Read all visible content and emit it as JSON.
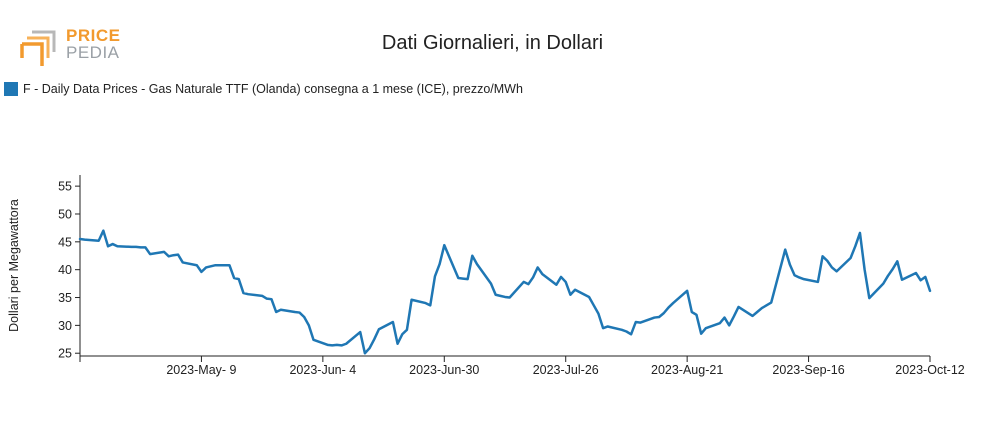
{
  "logo": {
    "top_word": "PRICE",
    "bottom_word": "PEDIA"
  },
  "colors": {
    "series": "#1f77b4",
    "logo_accent": "#f29a2e",
    "logo_gray": "#9aa0a6"
  },
  "chart_data": {
    "type": "line",
    "title": "Dati Giornalieri, in Dollari",
    "ylabel": "Dollari per Megawattora",
    "xlabel": "",
    "ylim": [
      24.5,
      57
    ],
    "yticks": [
      25,
      30,
      35,
      40,
      45,
      50,
      55
    ],
    "xlim": [
      "2023-04-13",
      "2023-10-12"
    ],
    "xticks": [
      {
        "date": "2023-05-09",
        "label": "2023-May- 9"
      },
      {
        "date": "2023-06-04",
        "label": "2023-Jun- 4"
      },
      {
        "date": "2023-06-30",
        "label": "2023-Jun-30"
      },
      {
        "date": "2023-07-26",
        "label": "2023-Jul-26"
      },
      {
        "date": "2023-08-21",
        "label": "2023-Aug-21"
      },
      {
        "date": "2023-09-16",
        "label": "2023-Sep-16"
      },
      {
        "date": "2023-10-12",
        "label": "2023-Oct-12"
      }
    ],
    "grid": false,
    "legend_position": "top-left",
    "series": [
      {
        "name": "F - Daily Data Prices - Gas Naturale TTF (Olanda) consegna a 1 mese (ICE), prezzo/MWh",
        "points": [
          [
            "2023-04-13",
            45.5
          ],
          [
            "2023-04-14",
            45.4
          ],
          [
            "2023-04-17",
            45.2
          ],
          [
            "2023-04-18",
            47.0
          ],
          [
            "2023-04-19",
            44.2
          ],
          [
            "2023-04-20",
            44.6
          ],
          [
            "2023-04-21",
            44.2
          ],
          [
            "2023-04-24",
            44.1
          ],
          [
            "2023-04-25",
            44.1
          ],
          [
            "2023-04-26",
            44.0
          ],
          [
            "2023-04-27",
            44.0
          ],
          [
            "2023-04-28",
            42.8
          ],
          [
            "2023-05-01",
            43.2
          ],
          [
            "2023-05-02",
            42.4
          ],
          [
            "2023-05-03",
            42.6
          ],
          [
            "2023-05-04",
            42.7
          ],
          [
            "2023-05-05",
            41.3
          ],
          [
            "2023-05-08",
            40.8
          ],
          [
            "2023-05-09",
            39.6
          ],
          [
            "2023-05-10",
            40.4
          ],
          [
            "2023-05-11",
            40.6
          ],
          [
            "2023-05-12",
            40.8
          ],
          [
            "2023-05-15",
            40.8
          ],
          [
            "2023-05-16",
            38.5
          ],
          [
            "2023-05-17",
            38.3
          ],
          [
            "2023-05-18",
            35.8
          ],
          [
            "2023-05-19",
            35.6
          ],
          [
            "2023-05-22",
            35.3
          ],
          [
            "2023-05-23",
            34.8
          ],
          [
            "2023-05-24",
            34.7
          ],
          [
            "2023-05-25",
            32.4
          ],
          [
            "2023-05-26",
            32.8
          ],
          [
            "2023-05-29",
            32.4
          ],
          [
            "2023-05-30",
            32.3
          ],
          [
            "2023-05-31",
            31.5
          ],
          [
            "2023-06-01",
            30.0
          ],
          [
            "2023-06-02",
            27.4
          ],
          [
            "2023-06-05",
            26.5
          ],
          [
            "2023-06-06",
            26.4
          ],
          [
            "2023-06-07",
            26.5
          ],
          [
            "2023-06-08",
            26.4
          ],
          [
            "2023-06-09",
            26.7
          ],
          [
            "2023-06-12",
            28.8
          ],
          [
            "2023-06-13",
            25.0
          ],
          [
            "2023-06-14",
            25.9
          ],
          [
            "2023-06-15",
            27.5
          ],
          [
            "2023-06-16",
            29.3
          ],
          [
            "2023-06-19",
            30.6
          ],
          [
            "2023-06-20",
            26.7
          ],
          [
            "2023-06-21",
            28.4
          ],
          [
            "2023-06-22",
            29.2
          ],
          [
            "2023-06-23",
            34.6
          ],
          [
            "2023-06-26",
            34.0
          ],
          [
            "2023-06-27",
            33.6
          ],
          [
            "2023-06-28",
            38.8
          ],
          [
            "2023-06-29",
            41.0
          ],
          [
            "2023-06-30",
            44.4
          ],
          [
            "2023-07-03",
            38.5
          ],
          [
            "2023-07-04",
            38.4
          ],
          [
            "2023-07-05",
            38.3
          ],
          [
            "2023-07-06",
            42.5
          ],
          [
            "2023-07-07",
            41.0
          ],
          [
            "2023-07-10",
            37.5
          ],
          [
            "2023-07-11",
            35.5
          ],
          [
            "2023-07-12",
            35.3
          ],
          [
            "2023-07-13",
            35.1
          ],
          [
            "2023-07-14",
            35.0
          ],
          [
            "2023-07-17",
            37.8
          ],
          [
            "2023-07-18",
            37.4
          ],
          [
            "2023-07-19",
            38.6
          ],
          [
            "2023-07-20",
            40.4
          ],
          [
            "2023-07-21",
            39.2
          ],
          [
            "2023-07-24",
            37.3
          ],
          [
            "2023-07-25",
            38.7
          ],
          [
            "2023-07-26",
            37.8
          ],
          [
            "2023-07-27",
            35.5
          ],
          [
            "2023-07-28",
            36.4
          ],
          [
            "2023-07-31",
            35.1
          ],
          [
            "2023-08-01",
            33.6
          ],
          [
            "2023-08-02",
            32.1
          ],
          [
            "2023-08-03",
            29.5
          ],
          [
            "2023-08-04",
            29.8
          ],
          [
            "2023-08-07",
            29.2
          ],
          [
            "2023-08-08",
            28.9
          ],
          [
            "2023-08-09",
            28.4
          ],
          [
            "2023-08-10",
            30.6
          ],
          [
            "2023-08-11",
            30.5
          ],
          [
            "2023-08-14",
            31.4
          ],
          [
            "2023-08-15",
            31.5
          ],
          [
            "2023-08-16",
            32.2
          ],
          [
            "2023-08-17",
            33.2
          ],
          [
            "2023-08-18",
            34.0
          ],
          [
            "2023-08-21",
            36.2
          ],
          [
            "2023-08-22",
            32.4
          ],
          [
            "2023-08-23",
            31.9
          ],
          [
            "2023-08-24",
            28.5
          ],
          [
            "2023-08-25",
            29.5
          ],
          [
            "2023-08-28",
            30.4
          ],
          [
            "2023-08-29",
            31.4
          ],
          [
            "2023-08-30",
            30.0
          ],
          [
            "2023-08-31",
            31.6
          ],
          [
            "2023-09-01",
            33.3
          ],
          [
            "2023-09-04",
            31.7
          ],
          [
            "2023-09-05",
            32.4
          ],
          [
            "2023-09-06",
            33.1
          ],
          [
            "2023-09-07",
            33.6
          ],
          [
            "2023-09-08",
            34.1
          ],
          [
            "2023-09-11",
            43.6
          ],
          [
            "2023-09-12",
            40.9
          ],
          [
            "2023-09-13",
            39.0
          ],
          [
            "2023-09-14",
            38.6
          ],
          [
            "2023-09-15",
            38.3
          ],
          [
            "2023-09-18",
            37.8
          ],
          [
            "2023-09-19",
            42.4
          ],
          [
            "2023-09-20",
            41.6
          ],
          [
            "2023-09-21",
            40.4
          ],
          [
            "2023-09-22",
            39.7
          ],
          [
            "2023-09-25",
            42.1
          ],
          [
            "2023-09-26",
            44.2
          ],
          [
            "2023-09-27",
            46.6
          ],
          [
            "2023-09-28",
            40.0
          ],
          [
            "2023-09-29",
            34.9
          ],
          [
            "2023-10-02",
            37.5
          ],
          [
            "2023-10-03",
            38.9
          ],
          [
            "2023-10-04",
            40.1
          ],
          [
            "2023-10-05",
            41.5
          ],
          [
            "2023-10-06",
            38.2
          ],
          [
            "2023-10-09",
            39.4
          ],
          [
            "2023-10-10",
            38.1
          ],
          [
            "2023-10-11",
            38.7
          ],
          [
            "2023-10-12",
            36.2
          ]
        ]
      }
    ]
  }
}
